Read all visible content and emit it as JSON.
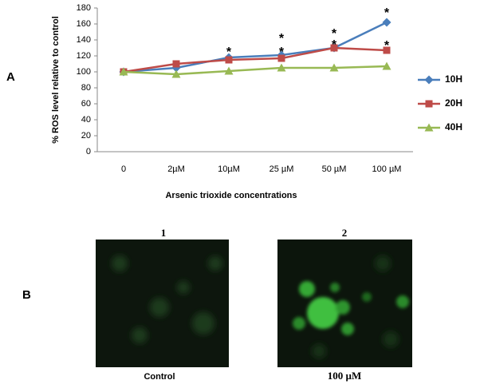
{
  "chart_data": {
    "type": "line",
    "y_label": "% ROS level relative to control",
    "x_label": "Arsenic trioxide concentrations",
    "categories": [
      "0",
      "2µM",
      "10µM",
      "25 µM",
      "50  µM",
      "100 µM"
    ],
    "series": [
      {
        "name": "10H",
        "color": "#4a7ebb",
        "marker": "diamond",
        "values": [
          100,
          105,
          118,
          121,
          130,
          162
        ]
      },
      {
        "name": "20H",
        "color": "#be4b48",
        "marker": "square",
        "values": [
          100,
          110,
          115,
          117,
          130,
          127
        ]
      },
      {
        "name": "40H",
        "color": "#98b954",
        "marker": "triangle",
        "values": [
          100,
          97,
          101,
          105,
          105,
          107
        ]
      }
    ],
    "ylim": [
      0,
      180
    ],
    "yticks": [
      0,
      20,
      40,
      60,
      80,
      100,
      120,
      140,
      160,
      180
    ],
    "legend": "right",
    "annotations": [
      {
        "text": "*",
        "x": "10µM",
        "y": 128
      },
      {
        "text": "*",
        "x": "25 µM",
        "y": 145
      },
      {
        "text": "*",
        "x": "25 µM",
        "y": 128
      },
      {
        "text": "*",
        "x": "50  µM",
        "y": 151
      },
      {
        "text": "*",
        "x": "50  µM",
        "y": 137
      },
      {
        "text": "*",
        "x": "100 µM",
        "y": 177
      },
      {
        "text": "*",
        "x": "100 µM",
        "y": 136
      }
    ]
  },
  "panels": {
    "a": "A",
    "b": "B",
    "image_1": {
      "number": "1",
      "caption": "Control"
    },
    "image_2": {
      "number": "2",
      "caption": "100 µM"
    }
  }
}
